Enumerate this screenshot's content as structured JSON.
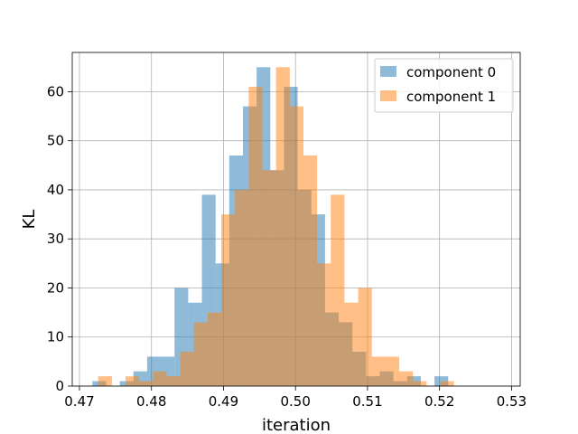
{
  "chart_data": {
    "type": "bar",
    "subtype": "overlapping-histogram",
    "title": "",
    "xlabel": "iteration",
    "ylabel": "KL",
    "xlim": [
      0.469,
      0.5312
    ],
    "ylim": [
      0,
      68
    ],
    "xticks": [
      0.47,
      0.48,
      0.49,
      0.5,
      0.51,
      0.52,
      0.53
    ],
    "xtick_labels": [
      "0.47",
      "0.48",
      "0.49",
      "0.50",
      "0.51",
      "0.52",
      "0.53"
    ],
    "yticks": [
      0,
      10,
      20,
      30,
      40,
      50,
      60
    ],
    "ytick_labels": [
      "0",
      "10",
      "20",
      "30",
      "40",
      "50",
      "60"
    ],
    "grid": true,
    "legend_position": "top-right",
    "series": [
      {
        "name": "component 0",
        "color": "#1f77b4",
        "opacity": 0.5,
        "bin_start": 0.4718,
        "bin_width": 0.0019,
        "counts": [
          1,
          0,
          1,
          3,
          6,
          6,
          20,
          17,
          39,
          25,
          47,
          57,
          65,
          44,
          61,
          40,
          35,
          15,
          13,
          7,
          2,
          3,
          1,
          2,
          0,
          2
        ]
      },
      {
        "name": "component 1",
        "color": "#ff7f0e",
        "opacity": 0.5,
        "bin_start": 0.4726,
        "bin_width": 0.0019,
        "counts": [
          2,
          0,
          2,
          1,
          3,
          2,
          7,
          13,
          15,
          35,
          40,
          61,
          44,
          65,
          57,
          47,
          25,
          39,
          17,
          20,
          6,
          6,
          3,
          1,
          0,
          1
        ]
      }
    ]
  }
}
